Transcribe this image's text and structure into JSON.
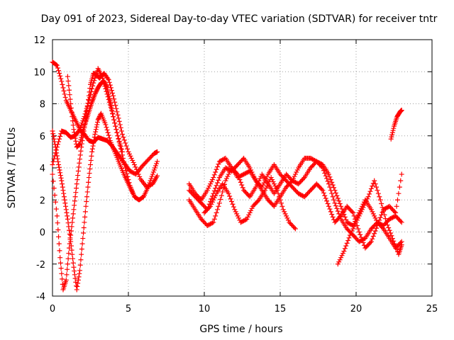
{
  "chart_data": {
    "type": "scatter",
    "title": "Day 091 of 2023, Sidereal Day-to-day VTEC variation (SDTVAR) for receiver tntr",
    "xlabel": "GPS time / hours",
    "ylabel": "SDTVAR / TECUs",
    "xlim": [
      0,
      25
    ],
    "ylim": [
      -4,
      12
    ],
    "xticks": [
      0,
      5,
      10,
      15,
      20,
      25
    ],
    "yticks": [
      -4,
      -2,
      0,
      2,
      4,
      6,
      8,
      10,
      12
    ],
    "grid": true,
    "marker": "+",
    "color": "#ff0000",
    "series": [
      {
        "name": "s1",
        "x": [
          0.0,
          0.3,
          0.6,
          0.9,
          1.2,
          1.5,
          1.8,
          2.1,
          2.4,
          2.7,
          3.0,
          3.3,
          3.6,
          3.9,
          4.2,
          4.5,
          4.8,
          5.1,
          5.4,
          5.7,
          6.0,
          6.3,
          6.6,
          6.9
        ],
        "y": [
          10.6,
          10.4,
          9.4,
          8.2,
          7.6,
          7.0,
          6.4,
          7.2,
          8.2,
          9.3,
          10.2,
          9.6,
          8.6,
          7.6,
          6.4,
          5.2,
          4.0,
          2.9,
          2.2,
          2.0,
          2.2,
          2.8,
          3.6,
          4.4
        ]
      },
      {
        "name": "s2",
        "x": [
          0.0,
          0.3,
          0.5,
          0.7,
          0.9,
          1.1,
          1.3,
          1.5,
          1.7,
          1.9,
          2.1,
          2.3,
          2.5,
          2.7,
          2.9,
          3.1,
          3.4,
          3.7,
          4.0,
          4.3,
          4.6,
          5.0,
          5.4,
          5.8,
          6.2,
          6.6,
          6.9
        ],
        "y": [
          3.6,
          1.0,
          -1.6,
          -3.6,
          -3.0,
          -1.0,
          0.6,
          2.2,
          3.8,
          5.3,
          6.5,
          7.8,
          9.2,
          9.9,
          9.8,
          9.6,
          9.9,
          9.5,
          8.5,
          7.3,
          6.1,
          5.0,
          4.2,
          3.3,
          2.8,
          3.0,
          3.5
        ]
      },
      {
        "name": "s3",
        "x": [
          0.0,
          0.2,
          0.4,
          0.6,
          0.8,
          1.0,
          1.2,
          1.4,
          1.6,
          1.8,
          2.0,
          2.2,
          2.4,
          2.6,
          2.8,
          3.0,
          3.2,
          3.5,
          3.8,
          4.1,
          4.4,
          4.7,
          5.0,
          5.3
        ],
        "y": [
          6.3,
          5.3,
          4.2,
          3.2,
          2.0,
          0.8,
          -0.6,
          -2.2,
          -3.6,
          -2.4,
          -0.4,
          1.6,
          3.4,
          5.0,
          6.1,
          7.0,
          7.4,
          6.7,
          5.7,
          5.0,
          4.3,
          3.6,
          3.0,
          2.4
        ]
      },
      {
        "name": "s4",
        "x": [
          0.0,
          0.3,
          0.6,
          0.9,
          1.2,
          1.5,
          1.8,
          2.1,
          2.4,
          2.7,
          3.0,
          3.3,
          3.6,
          3.9,
          4.2,
          4.5,
          4.8,
          5.1,
          5.5,
          5.9,
          6.3,
          6.7,
          6.9
        ],
        "y": [
          4.2,
          5.3,
          6.3,
          6.2,
          5.9,
          6.0,
          6.4,
          6.1,
          5.7,
          5.6,
          5.9,
          5.8,
          5.7,
          5.4,
          5.0,
          4.6,
          4.2,
          3.8,
          3.6,
          4.1,
          4.5,
          4.9,
          5.0
        ]
      },
      {
        "name": "s5",
        "x": [
          1.0,
          1.2,
          1.4,
          1.6,
          1.8,
          2.0,
          2.2,
          2.4,
          2.6,
          2.8,
          3.0,
          3.2,
          3.4,
          3.6,
          3.8,
          4.0,
          4.3,
          4.6
        ],
        "y": [
          9.7,
          8.0,
          6.4,
          5.3,
          5.5,
          6.3,
          6.9,
          7.5,
          8.1,
          8.6,
          9.0,
          9.3,
          9.4,
          9.0,
          8.2,
          7.2,
          6.0,
          5.0
        ]
      },
      {
        "name": "s6",
        "x": [
          9.0,
          9.4,
          9.8,
          10.2,
          10.6,
          11.0,
          11.4,
          11.8,
          12.2,
          12.6,
          13.0,
          13.4,
          13.8,
          14.2,
          14.6,
          15.0,
          15.4,
          15.8,
          16.2,
          16.6,
          17.0,
          17.4,
          17.8,
          18.2,
          18.6,
          19.0,
          19.4,
          19.8,
          20.2,
          20.6,
          21.0,
          21.4,
          21.8,
          22.2,
          22.6,
          23.0
        ],
        "y": [
          2.0,
          1.4,
          0.8,
          0.4,
          0.6,
          1.8,
          3.2,
          4.0,
          3.6,
          2.6,
          2.2,
          2.8,
          3.6,
          3.0,
          2.4,
          3.0,
          3.6,
          3.2,
          3.0,
          3.4,
          4.0,
          4.4,
          4.0,
          3.0,
          1.8,
          0.8,
          0.2,
          -0.2,
          -0.6,
          -0.4,
          0.2,
          0.6,
          0.4,
          0.8,
          1.0,
          0.6
        ]
      },
      {
        "name": "s7",
        "x": [
          9.0,
          9.4,
          9.8,
          10.2,
          10.6,
          11.0,
          11.4,
          11.8,
          12.2,
          12.6,
          13.0,
          13.4,
          13.8,
          14.2,
          14.6,
          15.0,
          15.4,
          15.8,
          16.2,
          16.6,
          17.0,
          17.4,
          17.8,
          18.2,
          18.6,
          19.0,
          19.4,
          19.8,
          20.2,
          20.6,
          21.0,
          21.4,
          21.8,
          22.2,
          22.6,
          23.0
        ],
        "y": [
          3.0,
          2.4,
          2.0,
          2.6,
          3.4,
          4.4,
          4.6,
          4.0,
          3.4,
          3.6,
          3.8,
          3.2,
          2.8,
          3.6,
          4.2,
          3.6,
          3.2,
          2.8,
          2.4,
          2.2,
          2.6,
          3.0,
          2.6,
          1.6,
          0.6,
          1.0,
          1.6,
          1.2,
          0.0,
          -1.0,
          -0.6,
          0.4,
          1.4,
          1.6,
          1.2,
          3.6
        ]
      },
      {
        "name": "s8",
        "x": [
          9.0,
          9.4,
          9.8,
          10.2,
          10.6,
          11.0,
          11.4,
          11.8,
          12.2,
          12.6,
          13.0,
          13.4,
          13.8,
          14.2,
          14.6,
          15.0,
          15.4,
          15.8,
          16.2,
          16.6,
          17.0,
          17.4,
          17.8,
          18.2,
          18.6,
          19.0,
          19.4,
          19.8,
          20.2,
          20.6,
          21.0,
          21.4,
          21.8,
          22.2,
          22.6,
          23.0
        ],
        "y": [
          2.6,
          2.2,
          1.8,
          1.4,
          2.4,
          3.4,
          4.0,
          3.8,
          4.2,
          4.6,
          4.0,
          3.2,
          2.6,
          2.0,
          1.6,
          2.2,
          2.8,
          3.2,
          4.0,
          4.6,
          4.6,
          4.4,
          4.2,
          3.6,
          2.6,
          1.6,
          0.6,
          0.4,
          1.2,
          2.0,
          1.4,
          0.6,
          0.2,
          -0.4,
          -1.0,
          -0.6
        ]
      },
      {
        "name": "s9",
        "x": [
          10.0,
          10.4,
          10.8,
          11.2,
          11.6,
          12.0,
          12.4,
          12.8,
          13.2,
          13.6,
          14.0,
          14.4,
          14.8,
          15.2,
          15.6,
          16.0
        ],
        "y": [
          1.2,
          1.6,
          2.4,
          3.0,
          2.4,
          1.4,
          0.6,
          0.8,
          1.6,
          2.0,
          2.6,
          3.4,
          2.6,
          1.4,
          0.6,
          0.2
        ]
      },
      {
        "name": "s10",
        "x": [
          18.8,
          19.2,
          19.6,
          20.0,
          20.4,
          20.8,
          21.2,
          21.6,
          22.0,
          22.4,
          22.8,
          23.0
        ],
        "y": [
          -2.0,
          -1.2,
          -0.2,
          0.6,
          1.4,
          2.2,
          3.2,
          2.0,
          0.6,
          -0.4,
          -1.4,
          -0.8
        ]
      },
      {
        "name": "s11",
        "x": [
          22.3,
          22.5,
          22.7,
          22.9,
          23.0
        ],
        "y": [
          5.8,
          6.6,
          7.2,
          7.5,
          7.6
        ]
      }
    ]
  }
}
